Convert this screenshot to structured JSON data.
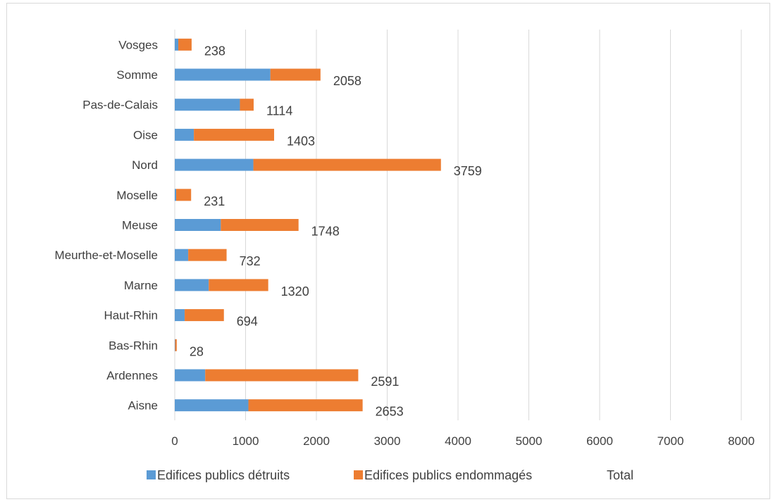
{
  "chart_data": {
    "type": "bar",
    "orientation": "horizontal",
    "stacked": true,
    "categories": [
      "Aisne",
      "Ardennes",
      "Bas-Rhin",
      "Haut-Rhin",
      "Marne",
      "Meurthe-et-Moselle",
      "Meuse",
      "Moselle",
      "Nord",
      "Oise",
      "Pas-de-Calais",
      "Somme",
      "Vosges"
    ],
    "series": [
      {
        "name": "Edifices publics détruits",
        "color": "#5b9bd5",
        "values": [
          1040,
          430,
          5,
          140,
          480,
          190,
          650,
          20,
          1110,
          270,
          920,
          1350,
          50
        ]
      },
      {
        "name": "Edifices publics endommagés",
        "color": "#ed7d31",
        "values": [
          1613,
          2161,
          23,
          554,
          840,
          542,
          1098,
          211,
          2649,
          1133,
          194,
          708,
          188
        ]
      },
      {
        "name": "Total",
        "color": "none",
        "values": [
          2653,
          2591,
          28,
          694,
          1320,
          732,
          1748,
          231,
          3759,
          1403,
          1114,
          2058,
          238
        ]
      }
    ],
    "data_labels": [
      "2653",
      "2591",
      "28",
      "694",
      "1320",
      "732",
      "1748",
      "231",
      "3759",
      "1403",
      "1114",
      "2058",
      "238"
    ],
    "xlim": [
      0,
      8000
    ],
    "x_ticks": [
      0,
      1000,
      2000,
      3000,
      4000,
      5000,
      6000,
      7000,
      8000
    ],
    "x_tick_labels": [
      "0",
      "1000",
      "2000",
      "3000",
      "4000",
      "5000",
      "6000",
      "7000",
      "8000"
    ],
    "grid": "vertical",
    "legend": "bottom",
    "title": "",
    "xlabel": "",
    "ylabel": ""
  }
}
